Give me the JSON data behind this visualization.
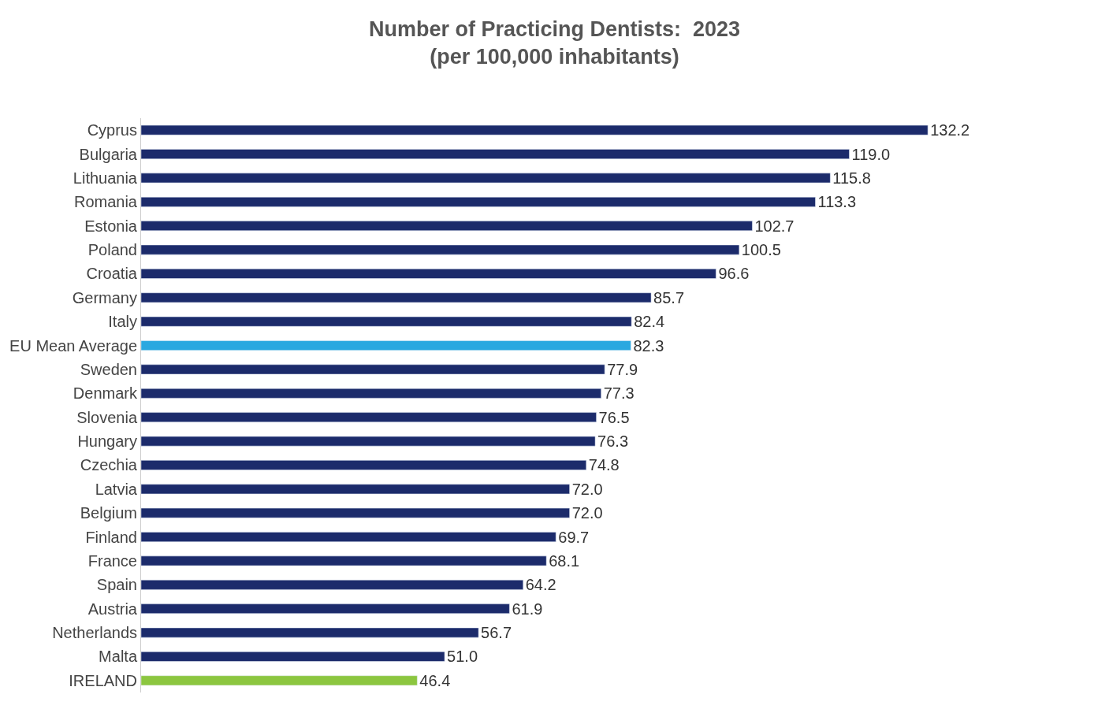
{
  "chart_data": {
    "type": "bar",
    "orientation": "horizontal",
    "title": "Number of Practicing Dentists:  2023",
    "subtitle": "(per 100,000 inhabitants)",
    "categories": [
      "Cyprus",
      "Bulgaria",
      "Lithuania",
      "Romania",
      "Estonia",
      "Poland",
      "Croatia",
      "Germany",
      "Italy",
      "EU Mean Average",
      "Sweden",
      "Denmark",
      "Slovenia",
      "Hungary",
      "Czechia",
      "Latvia",
      "Belgium",
      "Finland",
      "France",
      "Spain",
      "Austria",
      "Netherlands",
      "Malta",
      "IRELAND"
    ],
    "values": [
      132.2,
      119.0,
      115.8,
      113.3,
      102.7,
      100.5,
      96.6,
      85.7,
      82.4,
      82.3,
      77.9,
      77.3,
      76.5,
      76.3,
      74.8,
      72.0,
      72.0,
      69.7,
      68.1,
      64.2,
      61.9,
      56.7,
      51.0,
      46.4
    ],
    "value_labels": [
      "132.2",
      "119.0",
      "115.8",
      "113.3",
      "102.7",
      "100.5",
      "96.6",
      "85.7",
      "82.4",
      "82.3",
      "77.9",
      "77.3",
      "76.5",
      "76.3",
      "74.8",
      "72.0",
      "72.0",
      "69.7",
      "68.1",
      "64.2",
      "61.9",
      "56.7",
      "51.0",
      "46.4"
    ],
    "colors": [
      "#1c2b6b",
      "#1c2b6b",
      "#1c2b6b",
      "#1c2b6b",
      "#1c2b6b",
      "#1c2b6b",
      "#1c2b6b",
      "#1c2b6b",
      "#1c2b6b",
      "#2aa8e0",
      "#1c2b6b",
      "#1c2b6b",
      "#1c2b6b",
      "#1c2b6b",
      "#1c2b6b",
      "#1c2b6b",
      "#1c2b6b",
      "#1c2b6b",
      "#1c2b6b",
      "#1c2b6b",
      "#1c2b6b",
      "#1c2b6b",
      "#1c2b6b",
      "#8cc63f"
    ],
    "legend": false,
    "tick_labels": "y"
  }
}
